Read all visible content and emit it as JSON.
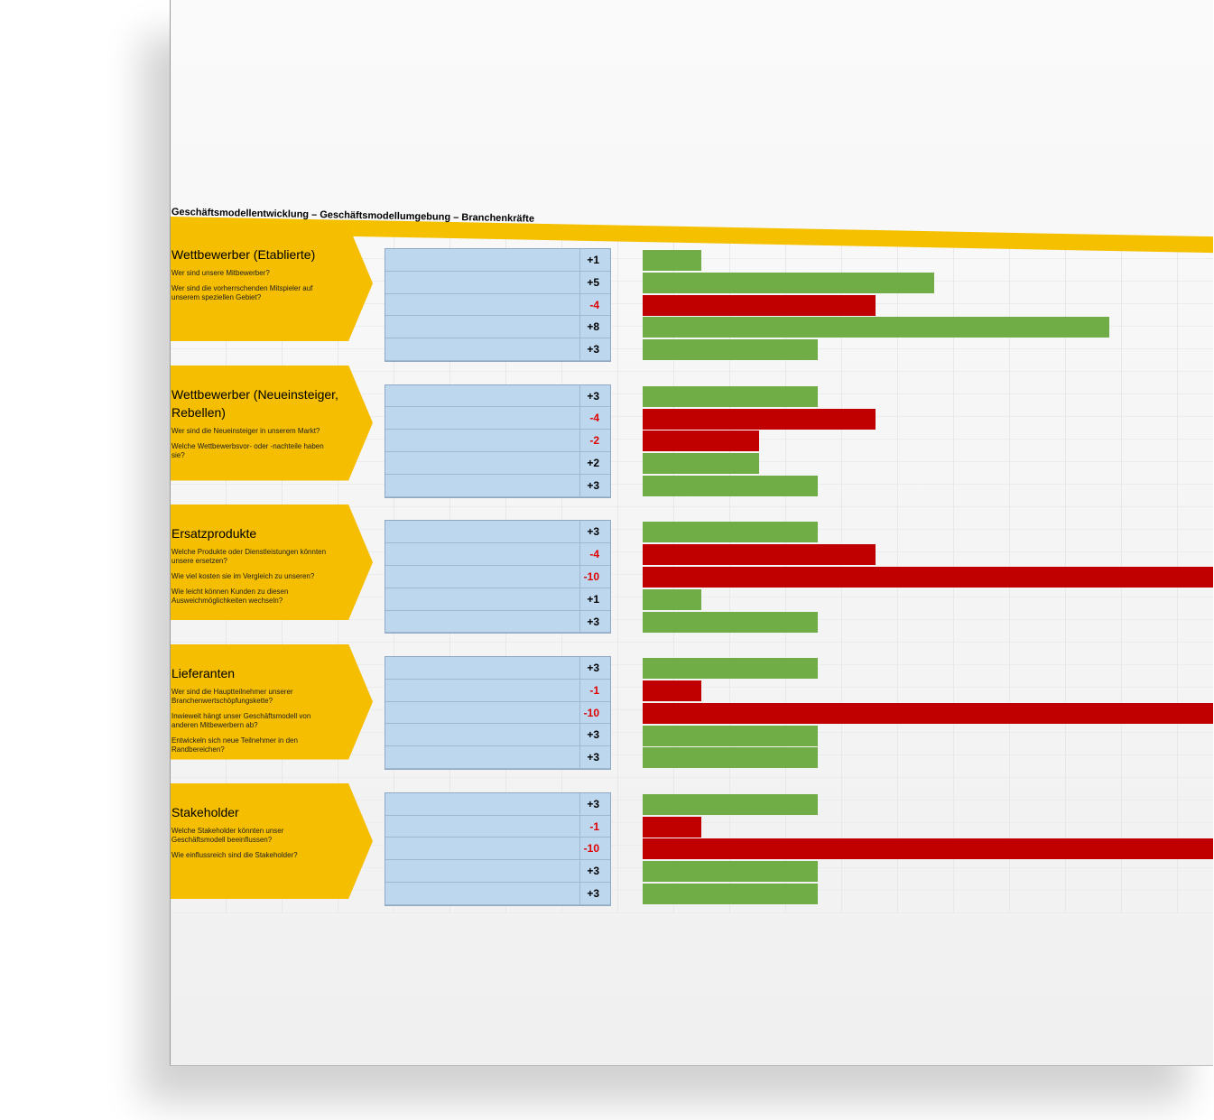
{
  "title": "Geschäftsmodellentwicklung – Geschäftsmodellumgebung – Branchenkräfte",
  "sections": [
    {
      "heading": "Wettbewerber (Etablierte)",
      "questions": [
        "Wer sind unsere Mitbewerber?",
        "Wer sind die vorherrschenden Mitspieler auf unserem speziellen Gebiet?"
      ],
      "scores": [
        {
          "value": 1,
          "label": "+1"
        },
        {
          "value": 5,
          "label": "+5"
        },
        -4,
        {
          "value": 8,
          "label": "+8"
        },
        {
          "value": 3,
          "label": "+3"
        }
      ]
    },
    {
      "heading": "Wettbewerber (Neueinsteiger, Rebellen)",
      "questions": [
        "Wer sind die Neueinsteiger in unserem Markt?",
        "Welche Wettbewerbsvor- oder -nachteile haben sie?"
      ],
      "scores": [
        {
          "value": 3,
          "label": "+3"
        },
        -4,
        -2,
        {
          "value": 2,
          "label": "+2"
        },
        {
          "value": 3,
          "label": "+3"
        }
      ]
    },
    {
      "heading": "Ersatzprodukte",
      "questions": [
        "Welche Produkte oder Dienstleistungen könnten unsere ersetzen?",
        "Wie viel kosten sie im Vergleich zu unseren?",
        "Wie leicht können Kunden zu diesen Ausweichmöglichkeiten wechseln?"
      ],
      "scores": [
        {
          "value": 3,
          "label": "+3"
        },
        -4,
        -10,
        {
          "value": 1,
          "label": "+1"
        },
        {
          "value": 3,
          "label": "+3"
        }
      ]
    },
    {
      "heading": "Lieferanten",
      "questions": [
        "Wer sind die Hauptteilnehmer unserer Branchenwertschöpfungskette?",
        "Inwieweit hängt unser Geschäftsmodell von anderen Mitbewerbern ab?",
        "Entwickeln sich neue Teilnehmer in den Randbereichen?"
      ],
      "scores": [
        {
          "value": 3,
          "label": "+3"
        },
        -1,
        -10,
        {
          "value": 3,
          "label": "+3"
        },
        {
          "value": 3,
          "label": "+3"
        }
      ]
    },
    {
      "heading": "Stakeholder",
      "questions": [
        "Welche Stakeholder könnten unser Geschäftsmodell beeinflussen?",
        "Wie einflussreich sind die Stakeholder?"
      ],
      "scores": [
        {
          "value": 3,
          "label": "+3"
        },
        -1,
        -10,
        {
          "value": 3,
          "label": "+3"
        },
        {
          "value": 3,
          "label": "+3"
        }
      ]
    }
  ]
}
